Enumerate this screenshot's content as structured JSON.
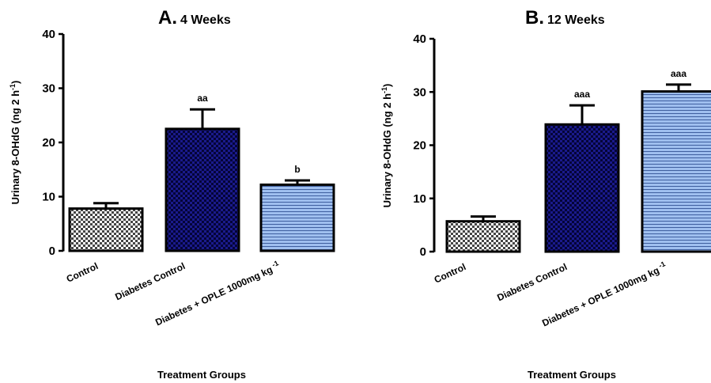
{
  "chart_data": [
    {
      "type": "bar",
      "title_letter": "A.",
      "title": "4 Weeks",
      "ylabel": "Urinary 8-OHdG (ng 2 h",
      "ylabel_sup": "-1",
      "ylabel_end": ")",
      "xlabel": "Treatment Groups",
      "ylim": [
        0,
        40
      ],
      "yticks": [
        0,
        10,
        20,
        30,
        40
      ],
      "categories": [
        "Control",
        "Diabetes Control",
        "Diabetes + OPLE 1000mg kg"
      ],
      "category_sup": [
        "",
        "",
        "-1"
      ],
      "values": [
        7.8,
        22.5,
        12.2
      ],
      "errors": [
        1.0,
        3.6,
        0.8
      ],
      "annotations": [
        "",
        "aa",
        "b"
      ],
      "patterns": [
        "check",
        "navy-check",
        "stripe"
      ],
      "grid": false
    },
    {
      "type": "bar",
      "title_letter": "B.",
      "title": "12 Weeks",
      "ylabel": "Urinary 8-OHdG (ng 2 h",
      "ylabel_sup": "-1",
      "ylabel_end": ")",
      "xlabel": "Treatment Groups",
      "ylim": [
        0,
        40
      ],
      "yticks": [
        0,
        10,
        20,
        30,
        40
      ],
      "categories": [
        "Control",
        "Diabetes Control",
        "Diabetes + OPLE 1000mg kg"
      ],
      "category_sup": [
        "",
        "",
        "-1"
      ],
      "values": [
        5.7,
        23.9,
        30.1
      ],
      "errors": [
        0.9,
        3.6,
        1.3
      ],
      "annotations": [
        "",
        "aaa",
        "aaa"
      ],
      "patterns": [
        "check",
        "navy-check",
        "stripe"
      ],
      "grid": false
    }
  ],
  "colors": {
    "control_fill": "#ffffff",
    "control_check": "#444444",
    "diabetes_fill": "#1a1a8c",
    "diabetes_check": "#050538",
    "ople_fill": "#9fbfef",
    "ople_stripe": "#3f5f9f",
    "stroke": "#000000"
  }
}
